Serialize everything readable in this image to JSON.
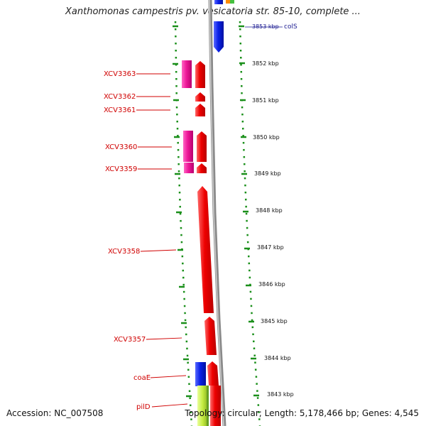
{
  "title": "Xanthomonas campestris pv. vesicatoria str. 85-10, complete ...",
  "accession": "Accession: NC_007508",
  "topology": "Topology: circular; Length: 5,178,466 bp; Genes: 4,545",
  "top_gene": {
    "position": "3853 kbp",
    "name": "colS"
  },
  "kbp_ticks": [
    "3852 kbp",
    "3851 kbp",
    "3850 kbp",
    "3849 kbp",
    "3848 kbp",
    "3847 kbp",
    "3846 kbp",
    "3845 kbp",
    "3844 kbp",
    "3843 kbp"
  ],
  "gene_labels": [
    "XCV3363",
    "XCV3362",
    "XCV3361",
    "XCV3360",
    "XCV3359",
    "XCV3358",
    "XCV3357",
    "coaE",
    "pilD"
  ],
  "colors": {
    "gene_red": "#ee0000",
    "gene_pink": "#ee1899",
    "gene_blue": "#0a20e8",
    "gene_lime": "#c4ec40",
    "dotted_green": "#1a8f1a",
    "label_red": "#d00000",
    "backbone_gray": "#8a8a8a"
  }
}
